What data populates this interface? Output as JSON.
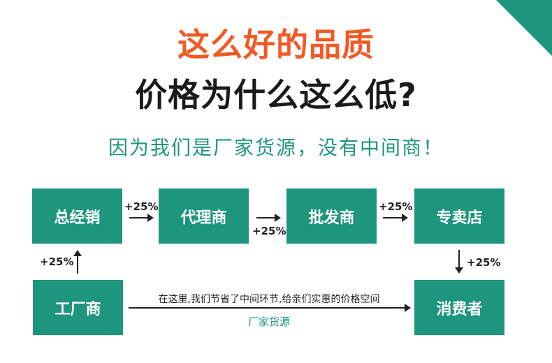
{
  "colors": {
    "accent": "#1e957d",
    "headline": "#f15a24",
    "text": "#1a1a1a"
  },
  "header": {
    "title": "这么好的品质",
    "question": "价格为什么这么低?",
    "answer": "因为我们是厂家货源，没有中间商！"
  },
  "flow": {
    "nodes": [
      "总经销",
      "代理商",
      "批发商",
      "专卖店",
      "工厂商",
      "消费者"
    ],
    "markup": "+25%",
    "note": "在这里,我们节省了中间环节,给亲们实惠的价格空间",
    "source_label": "厂家货源"
  }
}
